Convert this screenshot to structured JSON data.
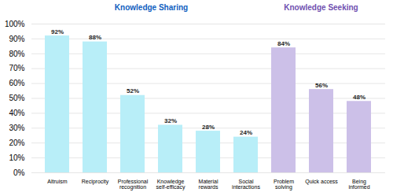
{
  "chart_data": {
    "type": "bar",
    "categories": [
      "Altruism",
      "Reciprocity",
      "Professional\nrecognition",
      "Knowledge\nself-efficacy",
      "Material\nrewards",
      "Social\ninteractions",
      "Problem\nsolving",
      "Quick access",
      "Being\ninformed"
    ],
    "values": [
      92,
      88,
      52,
      32,
      28,
      24,
      84,
      56,
      48
    ],
    "value_labels": [
      "92%",
      "88%",
      "52%",
      "32%",
      "28%",
      "24%",
      "84%",
      "56%",
      "48%"
    ],
    "data_labels": true,
    "colors": [
      "#b8eef8",
      "#b8eef8",
      "#b8eef8",
      "#b8eef8",
      "#b8eef8",
      "#b8eef8",
      "#ccc0e8",
      "#ccc0e8",
      "#ccc0e8"
    ],
    "annotations": [
      {
        "text": "Knowledge Sharing",
        "color": "#1060c0",
        "from": "Altruism",
        "to": "Social\ninteractions"
      },
      {
        "text": "Knowledge Seeking",
        "color": "#7050b0",
        "from": "Problem\nsolving",
        "to": "Being\ninformed"
      }
    ],
    "ylim": [
      0,
      100
    ],
    "yticks": [
      {
        "value": 0,
        "label": "0%"
      },
      {
        "value": 10,
        "label": "10%"
      },
      {
        "value": 20,
        "label": "20%"
      },
      {
        "value": 30,
        "label": "30%"
      },
      {
        "value": 40,
        "label": "40%"
      },
      {
        "value": 50,
        "label": "50%"
      },
      {
        "value": 60,
        "label": "60%"
      },
      {
        "value": 70,
        "label": "70%"
      },
      {
        "value": 80,
        "label": "80%"
      },
      {
        "value": 90,
        "label": "90%"
      },
      {
        "value": 100,
        "label": "100%"
      }
    ],
    "grid": true
  }
}
